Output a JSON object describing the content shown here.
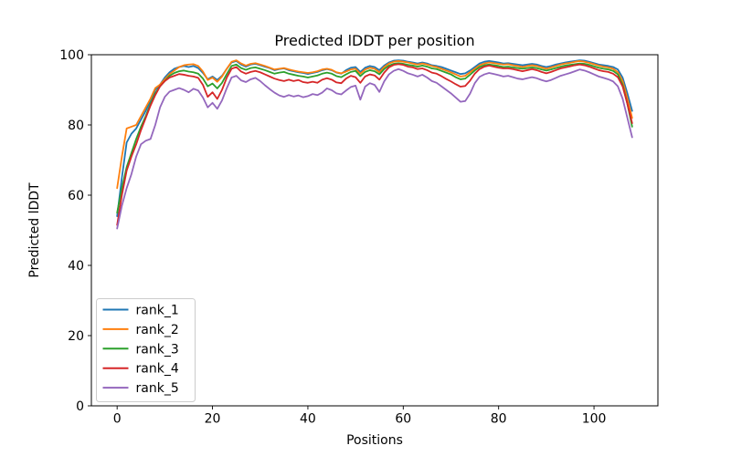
{
  "figure": {
    "background_color": "#ffffff",
    "axes_edge_color": "#000000",
    "legend_border_color": "#cccccc",
    "legend_background_color": "#ffffff"
  },
  "chart_data": {
    "type": "line",
    "title": "Predicted lDDT per position",
    "xlabel": "Positions",
    "ylabel": "Predicted lDDT",
    "xlim": [
      -5.4,
      113.4
    ],
    "ylim": [
      0,
      100
    ],
    "xticks": [
      0,
      20,
      40,
      60,
      80,
      100
    ],
    "yticks": [
      0,
      20,
      40,
      60,
      80,
      100
    ],
    "grid": false,
    "legend_position": "lower left",
    "x": [
      0,
      1,
      2,
      3,
      4,
      5,
      6,
      7,
      8,
      9,
      10,
      11,
      12,
      13,
      14,
      15,
      16,
      17,
      18,
      19,
      20,
      21,
      22,
      23,
      24,
      25,
      26,
      27,
      28,
      29,
      30,
      31,
      32,
      33,
      34,
      35,
      36,
      37,
      38,
      39,
      40,
      41,
      42,
      43,
      44,
      45,
      46,
      47,
      48,
      49,
      50,
      51,
      52,
      53,
      54,
      55,
      56,
      57,
      58,
      59,
      60,
      61,
      62,
      63,
      64,
      65,
      66,
      67,
      68,
      69,
      70,
      71,
      72,
      73,
      74,
      75,
      76,
      77,
      78,
      79,
      80,
      81,
      82,
      83,
      84,
      85,
      86,
      87,
      88,
      89,
      90,
      91,
      92,
      93,
      94,
      95,
      96,
      97,
      98,
      99,
      100,
      101,
      102,
      103,
      104,
      105,
      106,
      107,
      108
    ],
    "series": [
      {
        "name": "rank_1",
        "color": "#1f77b4",
        "values": [
          54,
          65,
          75,
          77.5,
          79,
          81.5,
          84,
          87,
          90,
          91.5,
          93.5,
          95,
          96,
          96.5,
          96.8,
          96.5,
          96.8,
          96.2,
          94.8,
          93,
          93.8,
          92.8,
          94,
          96,
          97.8,
          98.2,
          97.2,
          96.6,
          97.2,
          97.4,
          97,
          96.6,
          96.2,
          95.6,
          95.9,
          96.1,
          95.6,
          95.3,
          95,
          94.8,
          94.5,
          94.8,
          95.1,
          95.6,
          95.9,
          95.6,
          94.9,
          94.6,
          95.6,
          96.3,
          96.5,
          95.1,
          96.3,
          96.8,
          96.5,
          95.6,
          96.9,
          97.8,
          98.3,
          98.4,
          98.3,
          98,
          97.8,
          97.5,
          97.8,
          97.5,
          97,
          96.8,
          96.5,
          96,
          95.5,
          95,
          94.5,
          94.7,
          95.5,
          96.5,
          97.5,
          98,
          98.2,
          98,
          97.8,
          97.5,
          97.6,
          97.4,
          97.2,
          97,
          97.2,
          97.4,
          97.2,
          96.8,
          96.5,
          96.8,
          97.2,
          97.5,
          97.8,
          98,
          98.2,
          98.4,
          98.3,
          98,
          97.6,
          97.2,
          97,
          96.8,
          96.5,
          95.8,
          93.5,
          89,
          84
        ]
      },
      {
        "name": "rank_2",
        "color": "#ff7f0e",
        "values": [
          62,
          71,
          79,
          79.5,
          80,
          82.5,
          85,
          87.5,
          90.5,
          91.5,
          93,
          94.5,
          95.5,
          96.5,
          97,
          97.2,
          97.3,
          96.8,
          95.2,
          92.8,
          93.5,
          92.3,
          93.8,
          96,
          98,
          98.4,
          97.5,
          96.9,
          97.4,
          97.6,
          97.2,
          96.8,
          96.3,
          95.8,
          96,
          96.2,
          95.8,
          95.5,
          95.2,
          95,
          94.8,
          95,
          95.3,
          95.8,
          96,
          95.7,
          95,
          94.7,
          95.2,
          95.8,
          96,
          94.6,
          95.8,
          96.3,
          96,
          95,
          96.5,
          97.5,
          98,
          98.2,
          98,
          97.8,
          97.5,
          97.2,
          97.5,
          97.2,
          96.8,
          96.5,
          96,
          95.5,
          95,
          94.4,
          93.8,
          94,
          95,
          96,
          97,
          97.5,
          97.8,
          97.6,
          97.4,
          97.2,
          97.3,
          97,
          96.8,
          96.5,
          96.8,
          97,
          96.8,
          96.4,
          96,
          96.4,
          96.8,
          97.2,
          97.5,
          97.7,
          98,
          98.2,
          98,
          97.7,
          97.3,
          96.9,
          96.6,
          96.4,
          96,
          95,
          92.5,
          87.5,
          82
        ]
      },
      {
        "name": "rank_3",
        "color": "#2ca02c",
        "values": [
          55,
          62,
          68,
          72,
          76,
          79.5,
          82.5,
          86,
          89,
          91,
          92.5,
          94,
          94.8,
          95.3,
          95.5,
          95.2,
          95,
          94.6,
          93.2,
          91,
          91.8,
          90.4,
          92,
          94.5,
          96.8,
          97.2,
          96.2,
          95.7,
          96.2,
          96.4,
          96,
          95.6,
          95.1,
          94.6,
          94.9,
          95.1,
          94.6,
          94.3,
          94,
          93.8,
          93.5,
          93.8,
          94.1,
          94.6,
          94.9,
          94.6,
          93.9,
          93.6,
          94.4,
          95.1,
          95.4,
          93.9,
          95.1,
          95.6,
          95.3,
          94.4,
          95.9,
          96.9,
          97.4,
          97.6,
          97.4,
          97.1,
          96.9,
          96.6,
          96.9,
          96.6,
          96.1,
          95.9,
          95.4,
          94.9,
          94.4,
          93.6,
          93,
          93.2,
          94.3,
          95.5,
          96.5,
          97,
          97.2,
          97,
          96.8,
          96.5,
          96.6,
          96.4,
          96.2,
          96,
          96.2,
          96.4,
          96.2,
          95.8,
          95.5,
          95.8,
          96.2,
          96.6,
          96.9,
          97.1,
          97.3,
          97.5,
          97.4,
          97.1,
          96.7,
          96.3,
          96,
          95.8,
          95.4,
          94.4,
          91.5,
          86,
          79.5
        ]
      },
      {
        "name": "rank_4",
        "color": "#d62728",
        "values": [
          51.5,
          60,
          67,
          71,
          74.5,
          78.5,
          82,
          85.5,
          88.5,
          91,
          92.5,
          93.5,
          94,
          94.5,
          94.3,
          94,
          93.8,
          93.4,
          91.4,
          88,
          89.3,
          87.4,
          90,
          93.5,
          96,
          96.5,
          95.2,
          94.6,
          95.1,
          95.4,
          95,
          94.4,
          93.8,
          93.2,
          92.8,
          92.5,
          92.9,
          92.5,
          92.8,
          92.2,
          92,
          92.3,
          92,
          92.9,
          93.3,
          92.9,
          92.1,
          91.9,
          93.2,
          94,
          93.6,
          92,
          93.8,
          94.4,
          94.1,
          92.9,
          94.9,
          96.4,
          97.1,
          97.3,
          97.1,
          96.6,
          96.4,
          95.9,
          96.1,
          95.6,
          94.9,
          94.6,
          93.9,
          93.1,
          92.4,
          91.6,
          90.9,
          91.1,
          92.6,
          94.6,
          95.9,
          96.6,
          96.9,
          96.6,
          96.3,
          96.1,
          96.1,
          95.9,
          95.6,
          95.3,
          95.6,
          95.9,
          95.6,
          95.1,
          94.7,
          95.1,
          95.6,
          96.1,
          96.4,
          96.7,
          97,
          97.2,
          97,
          96.6,
          96.1,
          95.6,
          95.3,
          95.1,
          94.6,
          93.6,
          91,
          86,
          80.5
        ]
      },
      {
        "name": "rank_5",
        "color": "#9467bd",
        "values": [
          50.5,
          57,
          62,
          66,
          71,
          74.5,
          75.5,
          76,
          80,
          85,
          88,
          89.5,
          90,
          90.5,
          90,
          89.3,
          90.3,
          89.8,
          87.8,
          85,
          86.3,
          84.6,
          87,
          90.5,
          93.5,
          94,
          92.7,
          92.2,
          93,
          93.4,
          92.5,
          91.3,
          90.2,
          89.2,
          88.4,
          88,
          88.5,
          88.1,
          88.4,
          87.9,
          88.2,
          88.8,
          88.5,
          89.2,
          90.4,
          89.9,
          89,
          88.7,
          89.8,
          90.8,
          91.2,
          87.2,
          90.9,
          91.9,
          91.4,
          89.4,
          92.4,
          94.4,
          95.4,
          95.9,
          95.4,
          94.7,
          94.3,
          93.8,
          94.3,
          93.5,
          92.5,
          92,
          91,
          90,
          89,
          87.8,
          86.6,
          86.8,
          88.9,
          91.9,
          93.7,
          94.4,
          94.8,
          94.5,
          94.2,
          93.8,
          94,
          93.6,
          93.2,
          93,
          93.3,
          93.6,
          93.3,
          92.8,
          92.4,
          92.8,
          93.4,
          94,
          94.4,
          94.8,
          95.3,
          95.8,
          95.5,
          95,
          94.4,
          93.8,
          93.4,
          93,
          92.4,
          91,
          87.5,
          82,
          76.5
        ]
      }
    ]
  }
}
